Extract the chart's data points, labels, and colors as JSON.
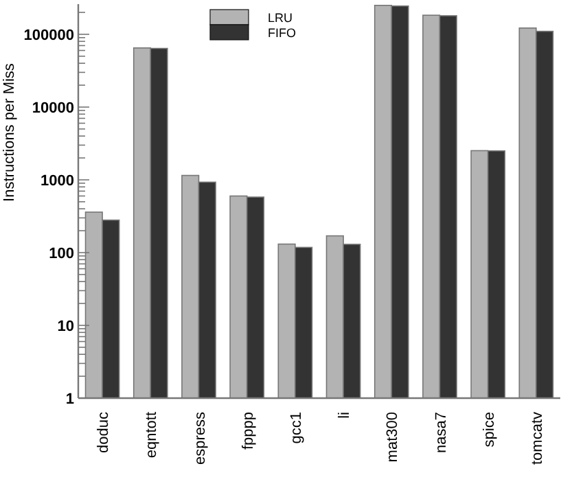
{
  "chart_data": {
    "type": "bar",
    "ylabel": "Instructions per Miss",
    "log": true,
    "legend": "top",
    "grid": false,
    "categories": [
      "doduc",
      "eqntott",
      "espress",
      "fpppp",
      "gcc1",
      "li",
      "mat300",
      "nasa7",
      "spice",
      "tomcatv"
    ],
    "ylim": [
      1,
      260000
    ],
    "yticks": [
      1,
      {
        "value": 2,
        "label": null
      },
      {
        "value": 3,
        "label": null
      },
      {
        "value": 4,
        "label": null
      },
      {
        "value": 5,
        "label": null
      },
      {
        "value": 6,
        "label": null
      },
      {
        "value": 7,
        "label": null
      },
      {
        "value": 8,
        "label": null
      },
      {
        "value": 9,
        "label": null
      },
      10,
      {
        "value": 20,
        "label": null
      },
      {
        "value": 30,
        "label": null
      },
      {
        "value": 40,
        "label": null
      },
      {
        "value": 50,
        "label": null
      },
      {
        "value": 60,
        "label": null
      },
      {
        "value": 70,
        "label": null
      },
      {
        "value": 80,
        "label": null
      },
      {
        "value": 90,
        "label": null
      },
      100,
      {
        "value": 200,
        "label": null
      },
      {
        "value": 300,
        "label": null
      },
      {
        "value": 400,
        "label": null
      },
      {
        "value": 500,
        "label": null
      },
      {
        "value": 600,
        "label": null
      },
      {
        "value": 700,
        "label": null
      },
      {
        "value": 800,
        "label": null
      },
      {
        "value": 900,
        "label": null
      },
      1000,
      {
        "value": 2000,
        "label": null
      },
      {
        "value": 3000,
        "label": null
      },
      {
        "value": 4000,
        "label": null
      },
      {
        "value": 5000,
        "label": null
      },
      {
        "value": 6000,
        "label": null
      },
      {
        "value": 7000,
        "label": null
      },
      {
        "value": 8000,
        "label": null
      },
      {
        "value": 9000,
        "label": null
      },
      10000,
      {
        "value": 20000,
        "label": null
      },
      {
        "value": 30000,
        "label": null
      },
      {
        "value": 40000,
        "label": null
      },
      {
        "value": 50000,
        "label": null
      },
      {
        "value": 60000,
        "label": null
      },
      {
        "value": 70000,
        "label": null
      },
      {
        "value": 80000,
        "label": null
      },
      {
        "value": 90000,
        "label": null
      },
      100000,
      {
        "value": 200000,
        "label": null
      }
    ],
    "series": [
      {
        "name": "LRU",
        "color": "#b3b3b3",
        "values": [
          360,
          65000,
          1150,
          600,
          131,
          170,
          250000,
          183000,
          2520,
          122000
        ]
      },
      {
        "name": "FIFO",
        "color": "#333333",
        "values": [
          280,
          64000,
          930,
          580,
          118,
          130,
          245000,
          180000,
          2500,
          110000
        ]
      }
    ]
  }
}
